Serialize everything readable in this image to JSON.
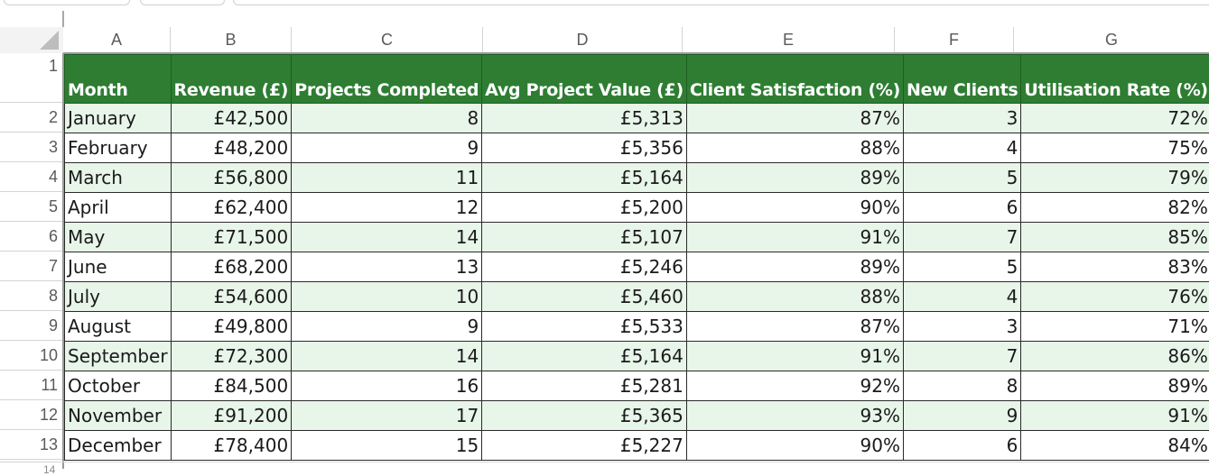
{
  "columns": [
    "A",
    "B",
    "C",
    "D",
    "E",
    "F",
    "G"
  ],
  "row_numbers": [
    "1",
    "2",
    "3",
    "4",
    "5",
    "6",
    "7",
    "8",
    "9",
    "10",
    "11",
    "12",
    "13"
  ],
  "partial_row_number": "14",
  "header": {
    "month": "Month",
    "revenue": "Revenue (£)",
    "projects": "Projects Completed",
    "avg_value": "Avg Project Value (£)",
    "satisfaction": "Client Satisfaction (%)",
    "new_clients": "New Clients",
    "utilisation": "Utilisation Rate (%)"
  },
  "rows": [
    {
      "month": "January",
      "revenue": "£42,500",
      "projects": "8",
      "avg_value": "£5,313",
      "satisfaction": "87%",
      "new_clients": "3",
      "utilisation": "72%"
    },
    {
      "month": "February",
      "revenue": "£48,200",
      "projects": "9",
      "avg_value": "£5,356",
      "satisfaction": "88%",
      "new_clients": "4",
      "utilisation": "75%"
    },
    {
      "month": "March",
      "revenue": "£56,800",
      "projects": "11",
      "avg_value": "£5,164",
      "satisfaction": "89%",
      "new_clients": "5",
      "utilisation": "79%"
    },
    {
      "month": "April",
      "revenue": "£62,400",
      "projects": "12",
      "avg_value": "£5,200",
      "satisfaction": "90%",
      "new_clients": "6",
      "utilisation": "82%"
    },
    {
      "month": "May",
      "revenue": "£71,500",
      "projects": "14",
      "avg_value": "£5,107",
      "satisfaction": "91%",
      "new_clients": "7",
      "utilisation": "85%"
    },
    {
      "month": "June",
      "revenue": "£68,200",
      "projects": "13",
      "avg_value": "£5,246",
      "satisfaction": "89%",
      "new_clients": "5",
      "utilisation": "83%"
    },
    {
      "month": "July",
      "revenue": "£54,600",
      "projects": "10",
      "avg_value": "£5,460",
      "satisfaction": "88%",
      "new_clients": "4",
      "utilisation": "76%"
    },
    {
      "month": "August",
      "revenue": "£49,800",
      "projects": "9",
      "avg_value": "£5,533",
      "satisfaction": "87%",
      "new_clients": "3",
      "utilisation": "71%"
    },
    {
      "month": "September",
      "revenue": "£72,300",
      "projects": "14",
      "avg_value": "£5,164",
      "satisfaction": "91%",
      "new_clients": "7",
      "utilisation": "86%"
    },
    {
      "month": "October",
      "revenue": "£84,500",
      "projects": "16",
      "avg_value": "£5,281",
      "satisfaction": "92%",
      "new_clients": "8",
      "utilisation": "89%"
    },
    {
      "month": "November",
      "revenue": "£91,200",
      "projects": "17",
      "avg_value": "£5,365",
      "satisfaction": "93%",
      "new_clients": "9",
      "utilisation": "91%"
    },
    {
      "month": "December",
      "revenue": "£78,400",
      "projects": "15",
      "avg_value": "£5,227",
      "satisfaction": "90%",
      "new_clients": "6",
      "utilisation": "84%"
    }
  ],
  "colors": {
    "header_fill": "#2e7d32",
    "band_fill": "#e8f5e9",
    "header_text": "#ffffff"
  }
}
